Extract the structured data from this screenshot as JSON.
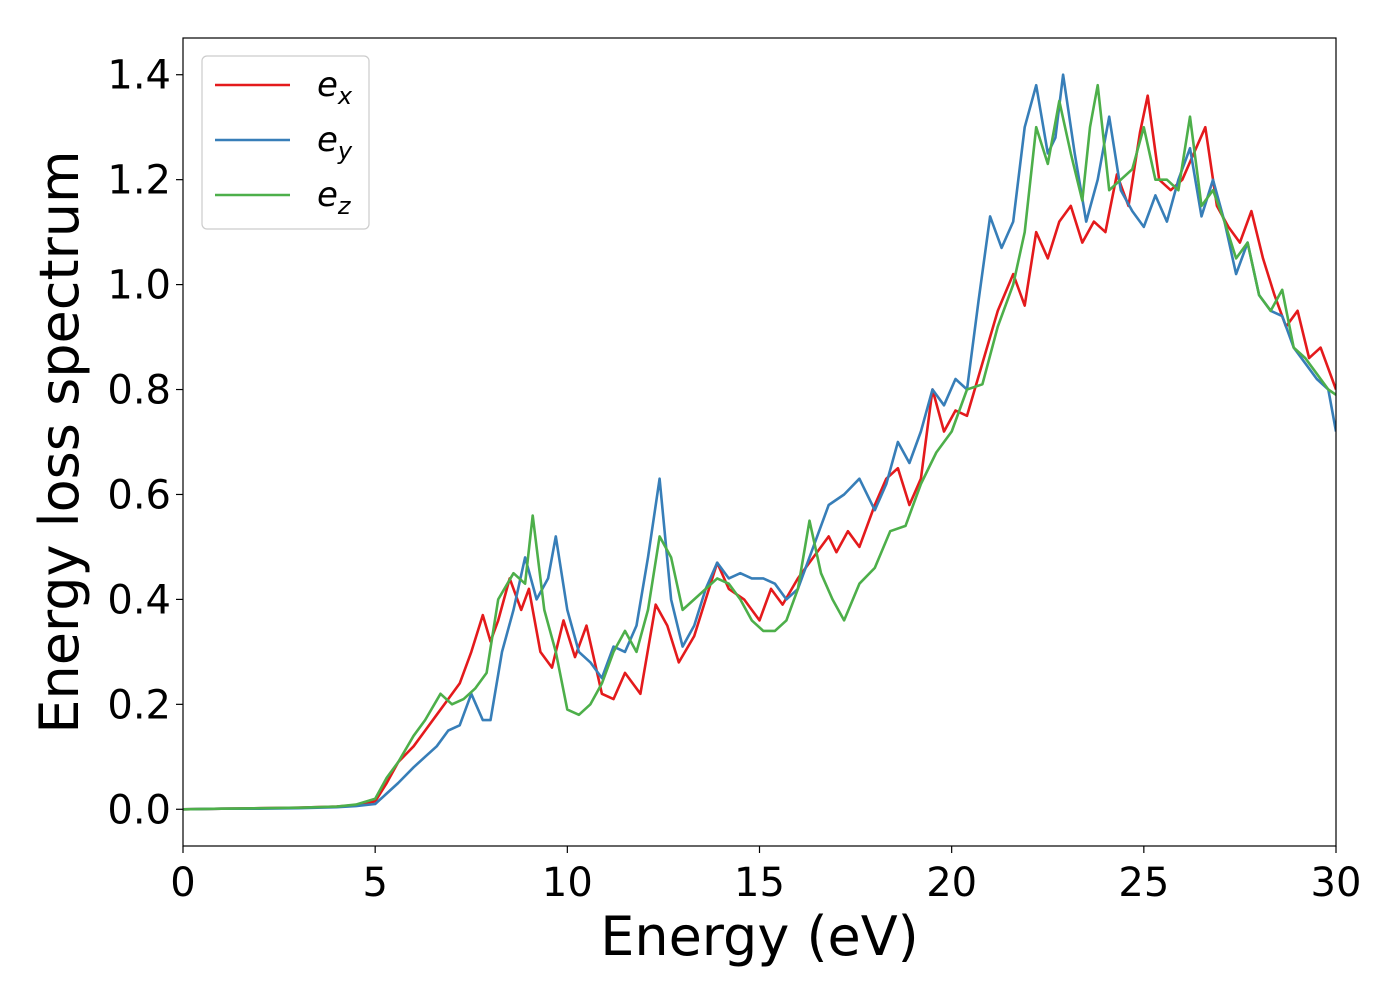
{
  "chart_data": {
    "type": "line",
    "xlabel": "Energy (eV)",
    "ylabel": "Energy loss spectrum",
    "xlim": [
      0,
      30
    ],
    "ylim": [
      -0.07,
      1.47
    ],
    "xticks": [
      0,
      5,
      10,
      15,
      20,
      25,
      30
    ],
    "xtick_labels": [
      "0",
      "5",
      "10",
      "15",
      "20",
      "25",
      "30"
    ],
    "yticks": [
      0.0,
      0.2,
      0.4,
      0.6,
      0.8,
      1.0,
      1.2,
      1.4
    ],
    "ytick_labels": [
      "0.0",
      "0.2",
      "0.4",
      "0.6",
      "0.8",
      "1.0",
      "1.2",
      "1.4"
    ],
    "grid": false,
    "legend_position": "top-left",
    "series": [
      {
        "name": "e_x",
        "label_base": "e",
        "label_sub": "x",
        "color": "#e41a1c",
        "x": [
          0,
          1,
          2,
          3,
          4,
          4.5,
          5,
          5.3,
          5.6,
          6.0,
          6.3,
          6.6,
          6.9,
          7.2,
          7.5,
          7.8,
          8.0,
          8.2,
          8.5,
          8.8,
          9.0,
          9.3,
          9.6,
          9.9,
          10.2,
          10.5,
          10.9,
          11.2,
          11.5,
          11.9,
          12.3,
          12.6,
          12.9,
          13.3,
          13.6,
          13.9,
          14.2,
          14.6,
          15.0,
          15.3,
          15.6,
          16.0,
          16.4,
          16.8,
          17.0,
          17.3,
          17.6,
          18.0,
          18.3,
          18.6,
          18.9,
          19.2,
          19.5,
          19.8,
          20.1,
          20.4,
          20.8,
          21.2,
          21.6,
          21.9,
          22.2,
          22.5,
          22.8,
          23.1,
          23.4,
          23.7,
          24.0,
          24.3,
          24.6,
          24.9,
          25.1,
          25.4,
          25.7,
          26.0,
          26.3,
          26.6,
          26.9,
          27.2,
          27.5,
          27.8,
          28.1,
          28.4,
          28.7,
          29.0,
          29.3,
          29.6,
          30.0
        ],
        "y": [
          0.0,
          0.001,
          0.002,
          0.003,
          0.005,
          0.008,
          0.015,
          0.05,
          0.09,
          0.12,
          0.15,
          0.18,
          0.21,
          0.24,
          0.3,
          0.37,
          0.32,
          0.36,
          0.44,
          0.38,
          0.42,
          0.3,
          0.27,
          0.36,
          0.29,
          0.35,
          0.22,
          0.21,
          0.26,
          0.22,
          0.39,
          0.35,
          0.28,
          0.33,
          0.4,
          0.47,
          0.42,
          0.4,
          0.36,
          0.42,
          0.39,
          0.44,
          0.48,
          0.52,
          0.49,
          0.53,
          0.5,
          0.58,
          0.63,
          0.65,
          0.58,
          0.63,
          0.8,
          0.72,
          0.76,
          0.75,
          0.85,
          0.95,
          1.02,
          0.96,
          1.1,
          1.05,
          1.12,
          1.15,
          1.08,
          1.12,
          1.1,
          1.21,
          1.15,
          1.29,
          1.36,
          1.2,
          1.18,
          1.2,
          1.25,
          1.3,
          1.15,
          1.11,
          1.08,
          1.14,
          1.05,
          0.98,
          0.92,
          0.95,
          0.86,
          0.88,
          0.8
        ]
      },
      {
        "name": "e_y",
        "label_base": "e",
        "label_sub": "y",
        "color": "#377eb8",
        "x": [
          0,
          1,
          2,
          3,
          4,
          4.5,
          5,
          5.3,
          5.6,
          6.0,
          6.3,
          6.6,
          6.9,
          7.2,
          7.5,
          7.8,
          8.0,
          8.3,
          8.6,
          8.9,
          9.2,
          9.5,
          9.7,
          10.0,
          10.3,
          10.6,
          10.9,
          11.2,
          11.5,
          11.8,
          12.1,
          12.4,
          12.7,
          13.0,
          13.3,
          13.6,
          13.9,
          14.2,
          14.5,
          14.8,
          15.1,
          15.4,
          15.7,
          16.0,
          16.4,
          16.8,
          17.2,
          17.6,
          18.0,
          18.3,
          18.6,
          18.9,
          19.2,
          19.5,
          19.8,
          20.1,
          20.4,
          20.7,
          21.0,
          21.3,
          21.6,
          21.9,
          22.2,
          22.5,
          22.7,
          22.9,
          23.2,
          23.5,
          23.8,
          24.1,
          24.4,
          24.7,
          25.0,
          25.3,
          25.6,
          25.9,
          26.2,
          26.5,
          26.8,
          27.1,
          27.4,
          27.7,
          28.0,
          28.3,
          28.6,
          28.9,
          29.2,
          29.5,
          29.8,
          30.0
        ],
        "y": [
          0.0,
          0.001,
          0.001,
          0.002,
          0.004,
          0.006,
          0.01,
          0.03,
          0.05,
          0.08,
          0.1,
          0.12,
          0.15,
          0.16,
          0.22,
          0.17,
          0.17,
          0.3,
          0.38,
          0.48,
          0.4,
          0.44,
          0.52,
          0.38,
          0.3,
          0.28,
          0.25,
          0.31,
          0.3,
          0.35,
          0.48,
          0.63,
          0.4,
          0.31,
          0.35,
          0.42,
          0.47,
          0.44,
          0.45,
          0.44,
          0.44,
          0.43,
          0.4,
          0.42,
          0.5,
          0.58,
          0.6,
          0.63,
          0.57,
          0.62,
          0.7,
          0.66,
          0.72,
          0.8,
          0.77,
          0.82,
          0.8,
          0.97,
          1.13,
          1.07,
          1.12,
          1.3,
          1.38,
          1.25,
          1.28,
          1.4,
          1.25,
          1.12,
          1.2,
          1.32,
          1.18,
          1.14,
          1.11,
          1.17,
          1.12,
          1.2,
          1.26,
          1.13,
          1.2,
          1.12,
          1.02,
          1.08,
          0.98,
          0.95,
          0.94,
          0.88,
          0.85,
          0.82,
          0.8,
          0.72
        ]
      },
      {
        "name": "e_z",
        "label_base": "e",
        "label_sub": "z",
        "color": "#4daf4a",
        "x": [
          0,
          1,
          2,
          3,
          4,
          4.5,
          5,
          5.3,
          5.6,
          6.0,
          6.3,
          6.7,
          7.0,
          7.3,
          7.6,
          7.9,
          8.2,
          8.6,
          8.9,
          9.1,
          9.4,
          9.7,
          10.0,
          10.3,
          10.6,
          10.9,
          11.2,
          11.5,
          11.8,
          12.1,
          12.4,
          12.7,
          13.0,
          13.3,
          13.6,
          13.9,
          14.2,
          14.5,
          14.8,
          15.1,
          15.4,
          15.7,
          16.0,
          16.3,
          16.6,
          16.9,
          17.2,
          17.6,
          18.0,
          18.4,
          18.8,
          19.2,
          19.6,
          20.0,
          20.4,
          20.8,
          21.2,
          21.6,
          21.9,
          22.2,
          22.5,
          22.8,
          23.1,
          23.4,
          23.6,
          23.8,
          24.1,
          24.4,
          24.7,
          25.0,
          25.3,
          25.6,
          25.9,
          26.2,
          26.5,
          26.8,
          27.1,
          27.4,
          27.7,
          28.0,
          28.3,
          28.6,
          28.9,
          29.2,
          29.5,
          29.8,
          30.0
        ],
        "y": [
          0.0,
          0.001,
          0.002,
          0.003,
          0.005,
          0.009,
          0.02,
          0.06,
          0.09,
          0.14,
          0.17,
          0.22,
          0.2,
          0.21,
          0.23,
          0.26,
          0.4,
          0.45,
          0.43,
          0.56,
          0.38,
          0.3,
          0.19,
          0.18,
          0.2,
          0.24,
          0.3,
          0.34,
          0.3,
          0.38,
          0.52,
          0.48,
          0.38,
          0.4,
          0.42,
          0.44,
          0.43,
          0.4,
          0.36,
          0.34,
          0.34,
          0.36,
          0.42,
          0.55,
          0.45,
          0.4,
          0.36,
          0.43,
          0.46,
          0.53,
          0.54,
          0.62,
          0.68,
          0.72,
          0.8,
          0.81,
          0.92,
          1.0,
          1.1,
          1.3,
          1.23,
          1.35,
          1.25,
          1.16,
          1.3,
          1.38,
          1.18,
          1.2,
          1.22,
          1.3,
          1.2,
          1.2,
          1.18,
          1.32,
          1.15,
          1.18,
          1.12,
          1.05,
          1.08,
          0.98,
          0.95,
          0.99,
          0.88,
          0.86,
          0.83,
          0.8,
          0.79
        ]
      }
    ]
  }
}
